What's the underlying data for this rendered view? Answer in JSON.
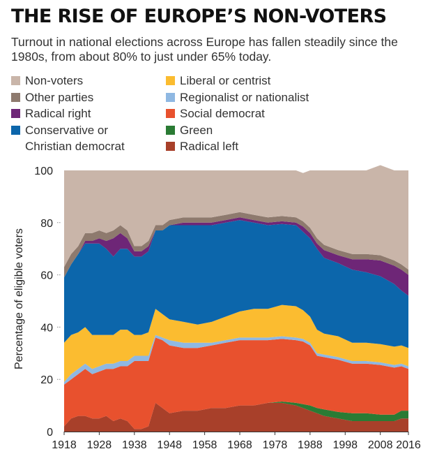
{
  "title": "THE RISE OF EUROPE’S NON-VOTERS",
  "subtitle": "Turnout in national elections across Europe has fallen steadily since the 1980s, from about 80% to just under 65% today.",
  "legend": {
    "column1": [
      {
        "name": "Non-voters",
        "color": "#c9b5a9"
      },
      {
        "name": "Other parties",
        "color": "#8e7a6e"
      },
      {
        "name": "Radical right",
        "color": "#6e2677"
      },
      {
        "name": "Conservative or Christian democrat",
        "color": "#0c66ab"
      }
    ],
    "column2": [
      {
        "name": "Liberal or centrist",
        "color": "#fbbc30"
      },
      {
        "name": "Regionalist or nationalist",
        "color": "#8fb8e2"
      },
      {
        "name": "Social democrat",
        "color": "#e8512e"
      },
      {
        "name": "Green",
        "color": "#2a7b34"
      },
      {
        "name": "Radical left",
        "color": "#a8402a"
      }
    ]
  },
  "chart_data": {
    "type": "area",
    "stacked": true,
    "title": "THE RISE OF EUROPE’S NON-VOTERS",
    "ylabel": "Percentage of eligible voters",
    "xlabel": "",
    "xlim": [
      1918,
      2016
    ],
    "ylim": [
      0,
      100
    ],
    "x_ticks": [
      1918,
      1928,
      1938,
      1948,
      1958,
      1968,
      1978,
      1988,
      1998,
      2008,
      2016
    ],
    "y_ticks": [
      0,
      20,
      40,
      60,
      80,
      100
    ],
    "grid": false,
    "legend_position": "top",
    "x": [
      1918,
      1920,
      1922,
      1924,
      1926,
      1928,
      1930,
      1932,
      1934,
      1936,
      1938,
      1940,
      1942,
      1944,
      1946,
      1948,
      1952,
      1956,
      1960,
      1964,
      1968,
      1972,
      1976,
      1980,
      1984,
      1986,
      1988,
      1990,
      1992,
      1996,
      2000,
      2004,
      2008,
      2012,
      2014,
      2016
    ],
    "series": [
      {
        "name": "Radical left",
        "color": "#a8402a",
        "values": [
          2,
          5,
          6,
          6,
          5,
          5,
          6,
          4,
          5,
          4,
          1,
          1,
          2,
          11,
          9,
          7,
          8,
          8,
          9,
          9,
          10,
          10,
          11,
          11,
          10,
          9,
          8,
          7,
          6,
          5,
          4,
          4,
          4,
          4,
          5,
          5
        ]
      },
      {
        "name": "Green",
        "color": "#2a7b34",
        "values": [
          0,
          0,
          0,
          0,
          0,
          0,
          0,
          0,
          0,
          0,
          0,
          0,
          0,
          0,
          0,
          0,
          0,
          0,
          0,
          0,
          0,
          0,
          0,
          0.5,
          1,
          1.5,
          2,
          2,
          2.5,
          2.5,
          3,
          3,
          2.5,
          2.5,
          3,
          3
        ]
      },
      {
        "name": "Social democrat",
        "color": "#e8512e",
        "values": [
          16,
          15,
          16,
          18,
          17,
          18,
          18,
          20,
          20,
          21,
          26,
          26,
          25,
          25,
          26,
          26,
          24,
          24,
          24,
          25,
          25,
          25,
          24,
          24,
          24,
          24,
          23,
          20,
          20,
          20,
          19,
          19,
          19,
          18,
          17,
          16
        ]
      },
      {
        "name": "Regionalist or nationalist",
        "color": "#8fb8e2",
        "values": [
          1,
          2,
          2,
          2,
          2,
          2,
          2,
          2,
          2,
          2,
          2,
          2,
          2,
          1,
          1,
          2,
          2,
          2,
          1,
          1,
          1,
          1,
          1,
          1,
          1,
          1,
          1,
          1,
          1,
          1,
          1,
          1,
          1,
          1,
          1,
          1
        ]
      },
      {
        "name": "Liberal or centrist",
        "color": "#fbbc30",
        "values": [
          15,
          15,
          14,
          14,
          13,
          12,
          11,
          11,
          12,
          12,
          8,
          8,
          9,
          10,
          9,
          8,
          8,
          7,
          8,
          9,
          10,
          11,
          11,
          12,
          12,
          11,
          10,
          9,
          8,
          8,
          7,
          7,
          7,
          7,
          7,
          7
        ]
      },
      {
        "name": "Conservative or Christian democrat",
        "color": "#0c66ab",
        "values": [
          25,
          27,
          30,
          32,
          35,
          35,
          33,
          30,
          31,
          31,
          30,
          30,
          31,
          30,
          32,
          36,
          37,
          38,
          37,
          36,
          35,
          33,
          32,
          31,
          31,
          30,
          30,
          31,
          29,
          28,
          28,
          27,
          26,
          24,
          21,
          20
        ]
      },
      {
        "name": "Radical right",
        "color": "#6e2677",
        "values": [
          0,
          0,
          0,
          1,
          1,
          2,
          3,
          7,
          6,
          4,
          2,
          2,
          2,
          0,
          0,
          0,
          1,
          1,
          1,
          1,
          1,
          1,
          1,
          1,
          1,
          2,
          2,
          2,
          3,
          3,
          4,
          5,
          6,
          7,
          8,
          8
        ]
      },
      {
        "name": "Other parties",
        "color": "#8e7a6e",
        "values": [
          4,
          4,
          3,
          3,
          3,
          3,
          3,
          3,
          3,
          3,
          2,
          2,
          2,
          2,
          2,
          2,
          2,
          2,
          2,
          2,
          2,
          2,
          2,
          2,
          2,
          2,
          2,
          2,
          2,
          2,
          2,
          2,
          2,
          2,
          2,
          2
        ]
      },
      {
        "name": "Non-voters",
        "color": "#c9b5a9",
        "values": [
          37,
          32,
          29,
          24,
          24,
          23,
          24,
          23,
          21,
          23,
          29,
          29,
          27,
          21,
          21,
          19,
          18,
          18,
          18,
          17,
          16,
          17,
          18,
          17.5,
          18,
          18.5,
          22,
          26,
          28.5,
          30.5,
          32,
          32,
          34.5,
          34.5,
          36,
          38
        ]
      }
    ]
  }
}
